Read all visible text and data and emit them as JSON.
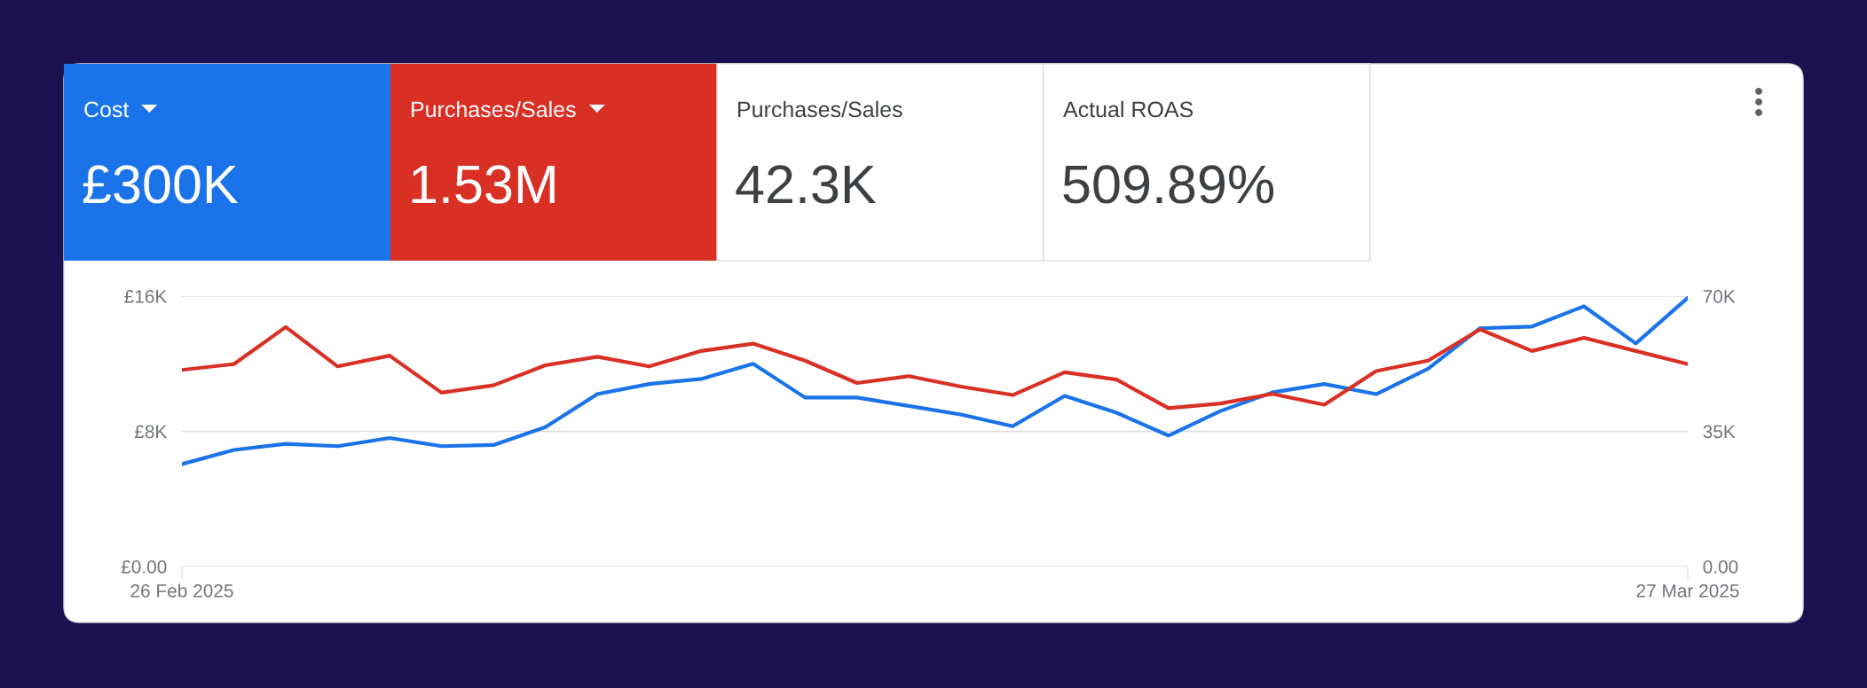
{
  "chart_data": [
    {
      "type": "other",
      "annotations": [
        "Cost",
        "£300K",
        "Purchases/Sales",
        "1.53M",
        "Purchases/Sales",
        "42.3K",
        "Actual ROAS",
        "509.89%"
      ],
      "colors": [
        "#1a73e8",
        "#d93025",
        "#ffffff",
        "#ffffff"
      ]
    },
    {
      "type": "line",
      "x": [
        "2025-02-26",
        "2025-02-27",
        "2025-02-28",
        "2025-03-01",
        "2025-03-02",
        "2025-03-03",
        "2025-03-04",
        "2025-03-05",
        "2025-03-06",
        "2025-03-07",
        "2025-03-08",
        "2025-03-09",
        "2025-03-10",
        "2025-03-11",
        "2025-03-12",
        "2025-03-13",
        "2025-03-14",
        "2025-03-15",
        "2025-03-16",
        "2025-03-17",
        "2025-03-18",
        "2025-03-19",
        "2025-03-20",
        "2025-03-21",
        "2025-03-22",
        "2025-03-23",
        "2025-03-24",
        "2025-03-25",
        "2025-03-26",
        "2025-03-27"
      ],
      "series": [
        {
          "color": "#1a73e8",
          "values": [
            6060,
            6900,
            7260,
            7120,
            7610,
            7120,
            7190,
            8250,
            10200,
            10800,
            11100,
            12000,
            10000,
            10000,
            9500,
            9000,
            8300,
            10100,
            9100,
            7750,
            9200,
            10300,
            10800,
            10200,
            11700,
            14100,
            14200,
            15400,
            13200,
            15900
          ]
        },
        {
          "color": "#d93025",
          "axis": "y2",
          "values": [
            50900,
            52400,
            62000,
            51800,
            54600,
            45000,
            46900,
            52100,
            54300,
            51800,
            55800,
            57700,
            53300,
            47500,
            49300,
            46600,
            44400,
            50300,
            48400,
            41000,
            42200,
            44700,
            41900,
            50600,
            53300,
            61400,
            55800,
            59200,
            55800,
            52400
          ]
        }
      ],
      "xlim": [
        "2025-02-26",
        "2025-03-27"
      ],
      "xticks": [
        {
          "value": "2025-02-26",
          "label": "26 Feb 2025"
        },
        {
          "value": "2025-03-27",
          "label": "27 Mar 2025"
        }
      ],
      "ylim": [
        0,
        16000
      ],
      "yticks": [
        {
          "value": 0,
          "label": "£0.00"
        },
        {
          "value": 8000,
          "label": "£8K"
        },
        {
          "value": 16000,
          "label": "£16K"
        }
      ],
      "y2lim": [
        0,
        70000
      ],
      "y2ticks": [
        {
          "value": 0,
          "label": "0.00"
        },
        {
          "value": 35000,
          "label": "35K"
        },
        {
          "value": 70000,
          "label": "70K"
        }
      ],
      "grid": "y",
      "line_style": "solid",
      "marker": "none"
    }
  ]
}
